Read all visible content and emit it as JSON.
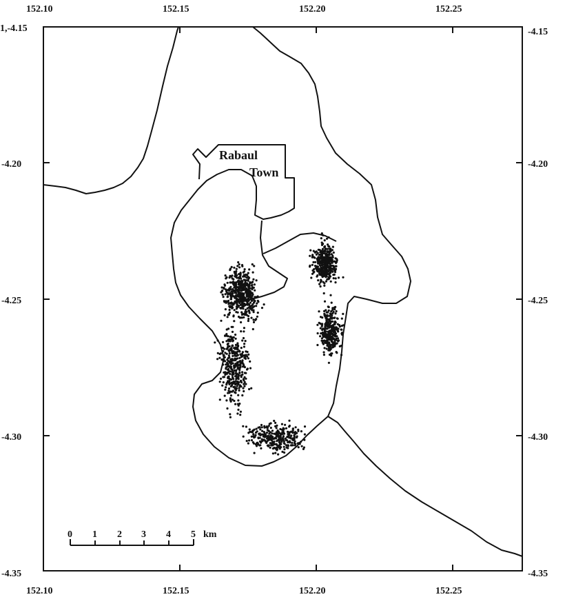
{
  "map": {
    "corner_label": "1,-4.15",
    "x_ticks": [
      "152.10",
      "152.15",
      "152.20",
      "152.25"
    ],
    "y_ticks_left": [
      "-4.20",
      "-4.25",
      "-4.30",
      "-4.35"
    ],
    "y_ticks_right": [
      "-4.15",
      "-4.20",
      "-4.25",
      "-4.30",
      "-4.35"
    ],
    "town_label_1": "Rabaul",
    "town_label_2": "Town",
    "scale_ticks": [
      "0",
      "1",
      "2",
      "3",
      "4",
      "5"
    ],
    "scale_unit": "km"
  },
  "chart_data": {
    "type": "scatter",
    "xlim": [
      152.1,
      152.275
    ],
    "ylim": [
      -4.35,
      -4.15
    ],
    "grid": false,
    "point_color": "#111111",
    "points_description_clusters": [
      {
        "lon": 152.172,
        "lat": -4.248
      },
      {
        "lon": 152.203,
        "lat": -4.237
      },
      {
        "lon": 152.205,
        "lat": -4.262
      },
      {
        "lon": 152.17,
        "lat": -4.275
      },
      {
        "lon": 152.185,
        "lat": -4.301
      }
    ]
  }
}
